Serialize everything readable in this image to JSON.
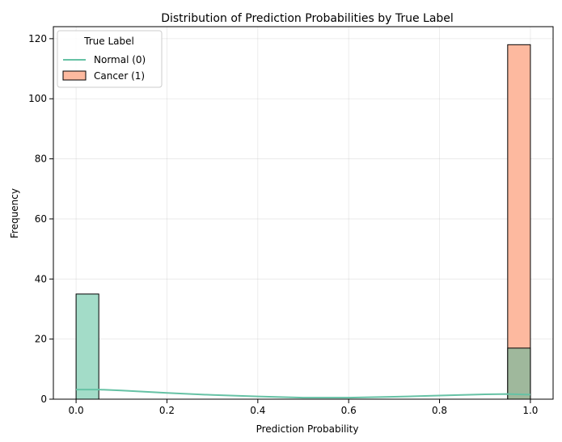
{
  "chart_data": {
    "type": "histogram",
    "title": "Distribution of Prediction Probabilities by True Label",
    "xlabel": "Prediction Probability",
    "ylabel": "Frequency",
    "xlim": [
      -0.05,
      1.05
    ],
    "ylim": [
      0,
      124
    ],
    "xticks": [
      0.0,
      0.2,
      0.4,
      0.6,
      0.8,
      1.0
    ],
    "xtick_labels": [
      "0.0",
      "0.2",
      "0.4",
      "0.6",
      "0.8",
      "1.0"
    ],
    "yticks": [
      0,
      20,
      40,
      60,
      80,
      100,
      120
    ],
    "ytick_labels": [
      "0",
      "20",
      "40",
      "60",
      "80",
      "100",
      "120"
    ],
    "grid": true,
    "legend": {
      "title": "True Label",
      "placement": "top-left",
      "entries": [
        {
          "label": "Normal (0)",
          "kind": "line",
          "color": "#66c2a5"
        },
        {
          "label": "Cancer (1)",
          "kind": "patch",
          "color": "#fc8d62"
        }
      ]
    },
    "bin_width": 0.05,
    "series": [
      {
        "name": "Normal (0)",
        "color": "#66c2a5",
        "bins": [
          {
            "x0": 0.0,
            "x1": 0.05,
            "count": 35
          },
          {
            "x0": 0.95,
            "x1": 1.0,
            "count": 17
          }
        ],
        "kde": {
          "x": [
            0.0,
            0.05,
            0.1,
            0.2,
            0.3,
            0.4,
            0.5,
            0.6,
            0.7,
            0.8,
            0.9,
            0.95,
            1.0
          ],
          "y": [
            3.2,
            3.2,
            2.9,
            2.1,
            1.4,
            0.9,
            0.5,
            0.5,
            0.8,
            1.2,
            1.6,
            1.7,
            1.5
          ]
        }
      },
      {
        "name": "Cancer (1)",
        "color": "#fc8d62",
        "bins": [
          {
            "x0": 0.95,
            "x1": 1.0,
            "count": 118
          }
        ]
      }
    ],
    "overlap_color": "#9fb89c",
    "normal_fill": "#a3dcc8",
    "cancer_fill": "#fdb99f"
  }
}
